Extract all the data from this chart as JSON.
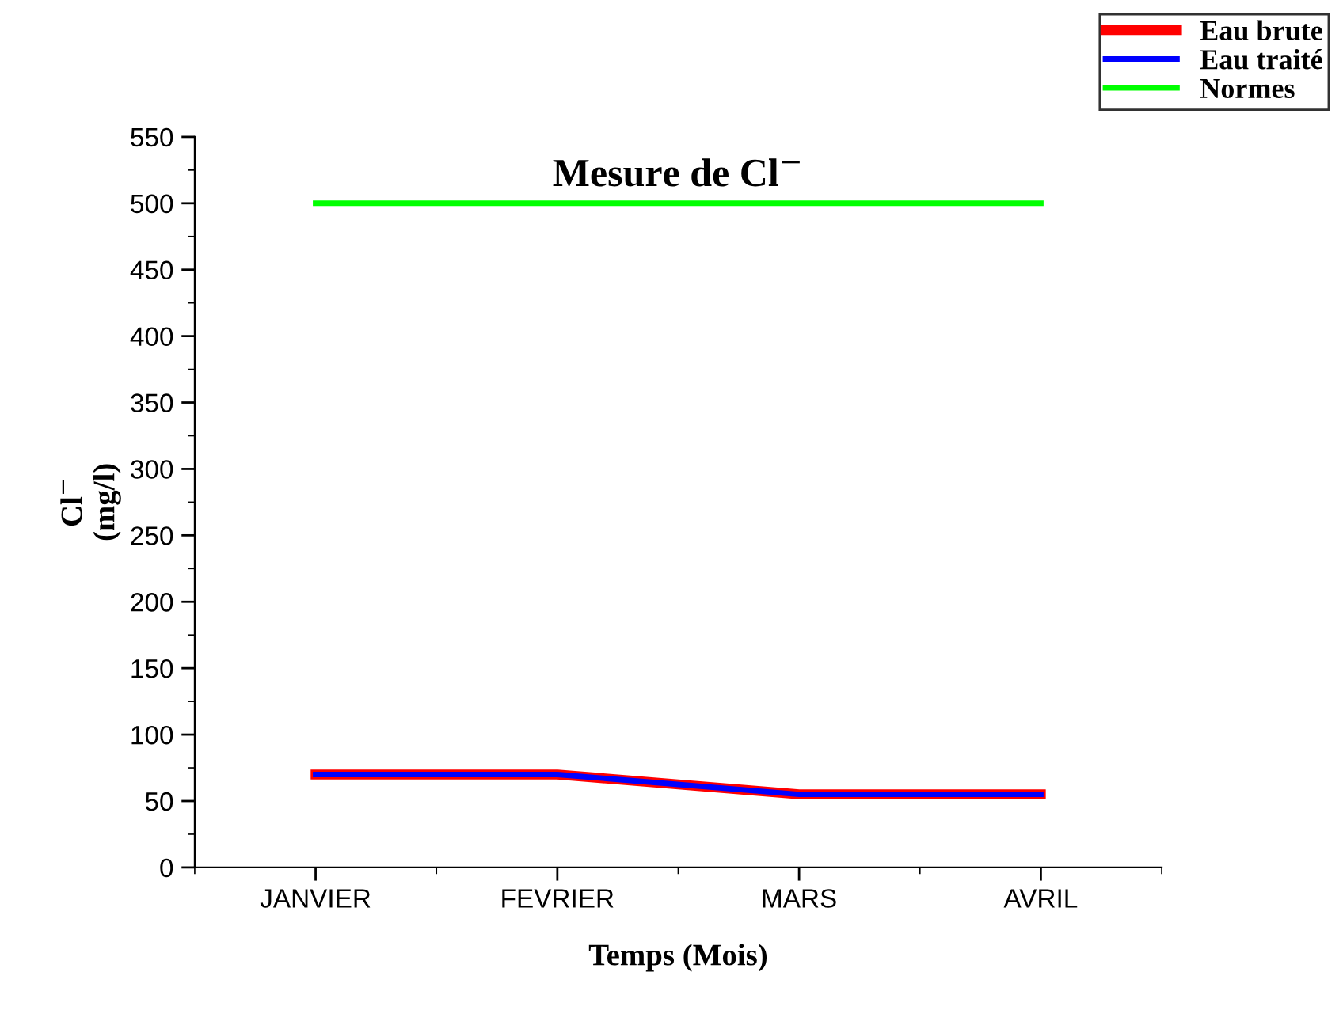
{
  "chart_data": {
    "type": "line",
    "title": "Mesure de Cl$^{−}$",
    "xlabel": "Temps (Mois)",
    "ylabel": "Cl$^{−}$\n(mg/l)",
    "categories": [
      "JANVIER",
      "FEVRIER",
      "MARS",
      "AVRIL"
    ],
    "series": [
      {
        "name": "Eau brute",
        "color": "#ff0000",
        "values": [
          70,
          70,
          55,
          55
        ]
      },
      {
        "name": "Eau traité",
        "color": "#0000ff",
        "values": [
          70,
          70,
          55,
          55
        ]
      },
      {
        "name": "Normes",
        "color": "#00ff00",
        "values": [
          500,
          500,
          500,
          500
        ]
      }
    ],
    "ylim": [
      0,
      550
    ],
    "yticks": [
      0,
      50,
      100,
      150,
      200,
      250,
      300,
      350,
      400,
      450,
      500,
      550
    ],
    "grid": false,
    "legend": "top right",
    "marker": "none",
    "line_style": "solid"
  }
}
